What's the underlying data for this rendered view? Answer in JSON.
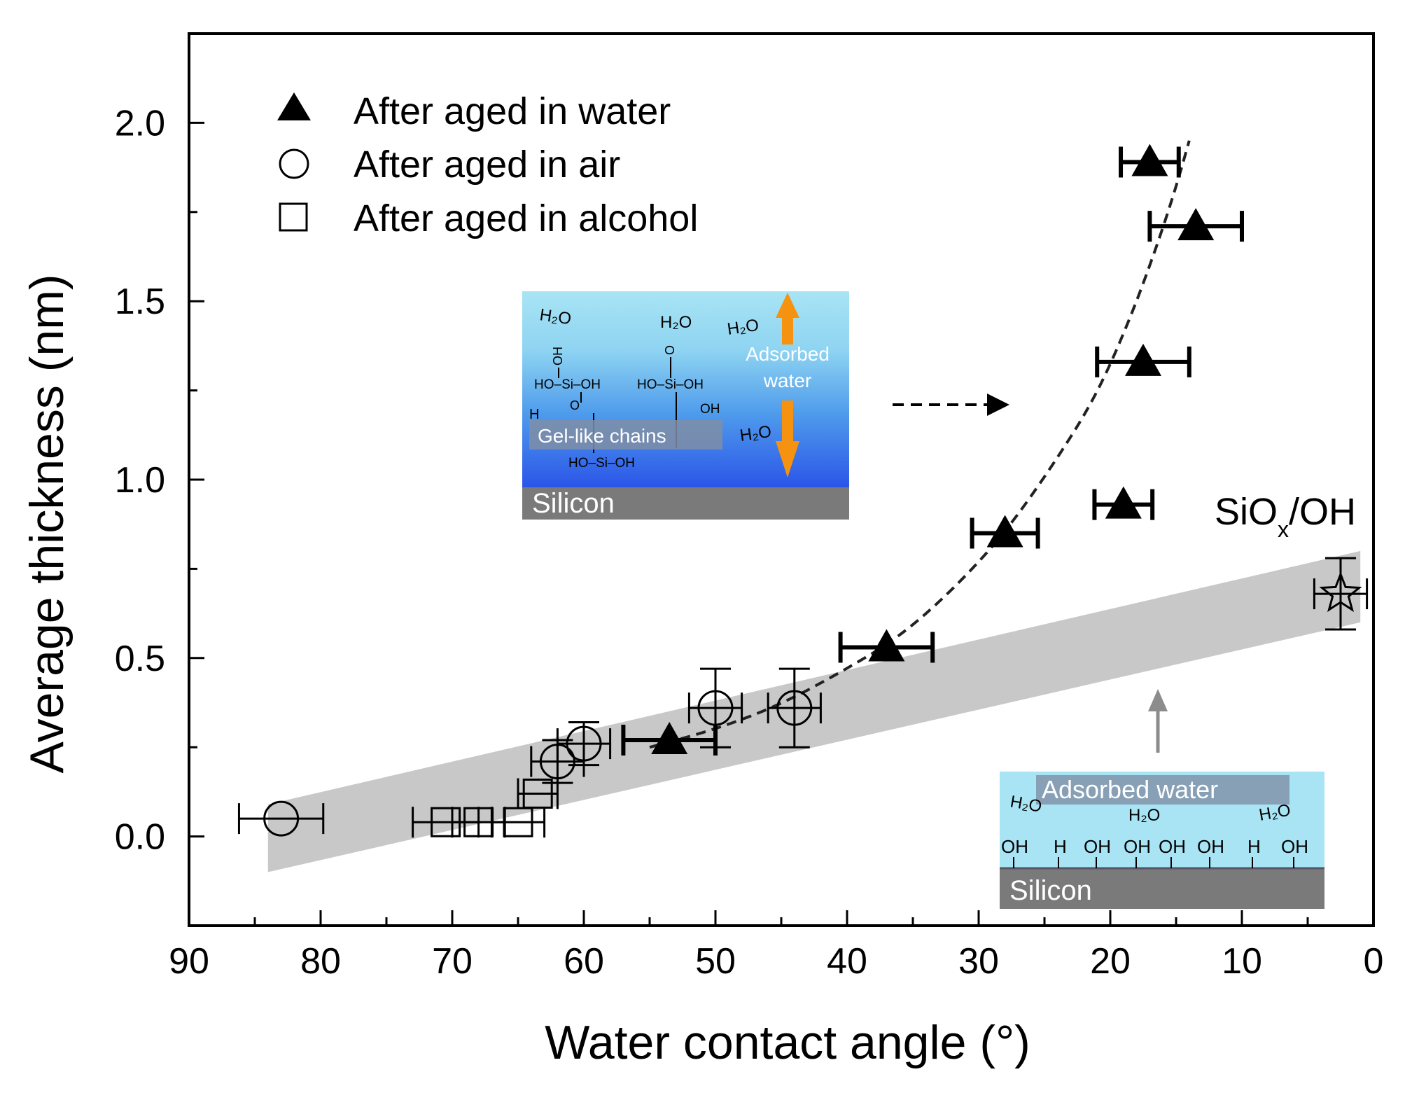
{
  "chart_data": {
    "type": "scatter",
    "xlabel": "Water contact angle (°)",
    "ylabel": "Average thickness (nm)",
    "xlim": [
      90,
      0
    ],
    "ylim": [
      -0.25,
      2.25
    ],
    "xticks": [
      90,
      80,
      70,
      60,
      50,
      40,
      30,
      20,
      10,
      0
    ],
    "yticks": [
      0.0,
      0.5,
      1.0,
      1.5,
      2.0
    ],
    "xtick_labels": [
      "90",
      "80",
      "70",
      "60",
      "50",
      "40",
      "30",
      "20",
      "10",
      "0"
    ],
    "ytick_labels": [
      "0.0",
      "0.5",
      "1.0",
      "1.5",
      "2.0"
    ],
    "legend_position": "top-left",
    "series": [
      {
        "name": "After aged in water",
        "marker": "filled-triangle",
        "points": [
          {
            "x": 53.5,
            "y": 0.27,
            "xerr": 3.5
          },
          {
            "x": 37.0,
            "y": 0.53,
            "xerr": 3.5
          },
          {
            "x": 28.0,
            "y": 0.85,
            "xerr": 2.5
          },
          {
            "x": 19.0,
            "y": 0.93,
            "xerr": 2.2
          },
          {
            "x": 17.5,
            "y": 1.33,
            "xerr": 3.5
          },
          {
            "x": 13.5,
            "y": 1.71,
            "xerr": 3.5
          },
          {
            "x": 17.0,
            "y": 1.89,
            "xerr": 2.2
          }
        ]
      },
      {
        "name": "After aged in air",
        "marker": "open-circle",
        "points": [
          {
            "x": 83.0,
            "y": 0.05,
            "xerr": 3.2,
            "yerr": 0.0
          },
          {
            "x": 62.0,
            "y": 0.21,
            "xerr": 2.0,
            "yerr": 0.06
          },
          {
            "x": 60.0,
            "y": 0.26,
            "xerr": 2.0,
            "yerr": 0.06
          },
          {
            "x": 50.0,
            "y": 0.36,
            "xerr": 2.0,
            "yerr": 0.11
          },
          {
            "x": 44.0,
            "y": 0.36,
            "xerr": 2.0,
            "yerr": 0.11
          }
        ]
      },
      {
        "name": "After aged in alcohol",
        "marker": "open-square",
        "points": [
          {
            "x": 70.5,
            "y": 0.04,
            "xerr": 2.5
          },
          {
            "x": 68.0,
            "y": 0.04,
            "xerr": 2.0
          },
          {
            "x": 65.0,
            "y": 0.04,
            "xerr": 2.0
          },
          {
            "x": 63.5,
            "y": 0.12,
            "xerr": 1.5
          }
        ]
      },
      {
        "name": "SiOx/OH",
        "marker": "open-star",
        "points": [
          {
            "x": 2.5,
            "y": 0.68,
            "xerr": 2.0,
            "yerr": 0.1
          }
        ]
      }
    ],
    "fit_curve": [
      {
        "x": 55.0,
        "y": 0.25
      },
      {
        "x": 50.0,
        "y": 0.3
      },
      {
        "x": 45.0,
        "y": 0.37
      },
      {
        "x": 40.0,
        "y": 0.47
      },
      {
        "x": 36.0,
        "y": 0.56
      },
      {
        "x": 32.0,
        "y": 0.69
      },
      {
        "x": 28.0,
        "y": 0.85
      },
      {
        "x": 24.0,
        "y": 1.06
      },
      {
        "x": 21.0,
        "y": 1.24
      },
      {
        "x": 18.5,
        "y": 1.45
      },
      {
        "x": 16.5,
        "y": 1.65
      },
      {
        "x": 15.0,
        "y": 1.82
      },
      {
        "x": 14.0,
        "y": 1.95
      }
    ],
    "gray_band": {
      "upper": [
        {
          "x": 84.0,
          "y": 0.09
        },
        {
          "x": 1.0,
          "y": 0.8
        }
      ],
      "lower": [
        {
          "x": 84.0,
          "y": -0.1
        },
        {
          "x": 1.0,
          "y": 0.6
        }
      ]
    },
    "annotations": {
      "sio_label_main": "SiO",
      "sio_label_sub": "x",
      "sio_label_tail": "/OH"
    }
  },
  "inset_top": {
    "adsorbed_label_1": "Adsorbed",
    "adsorbed_label_2": "water",
    "gel_label": "Gel-like chains",
    "silicon_label": "Silicon",
    "h2o_labels": [
      "H₂O",
      "H₂O",
      "H₂O",
      "H₂O"
    ],
    "chain_labels": [
      "OH",
      "HO–Si–OH",
      "O",
      "HO–Si–OH",
      "HO–Si–OH",
      "H",
      "O",
      "OH"
    ],
    "arrow_color": "#f5920f"
  },
  "inset_bottom": {
    "adsorbed_label": "Adsorbed water",
    "silicon_label": "Silicon",
    "h2o_labels": [
      "H₂O",
      "H₂O",
      "H₂O"
    ],
    "surface_groups": [
      "OH",
      "H",
      "OH",
      "OH",
      "OH",
      "OH",
      "H",
      "OH"
    ]
  },
  "colors": {
    "band": "#c8c8c8",
    "water_top": "#a8e4f4",
    "water_mid": "#62b4ec",
    "water_bottom": "#2b55e8",
    "silicon": "#7a7a7a",
    "label_box": "#7f8ea6"
  }
}
